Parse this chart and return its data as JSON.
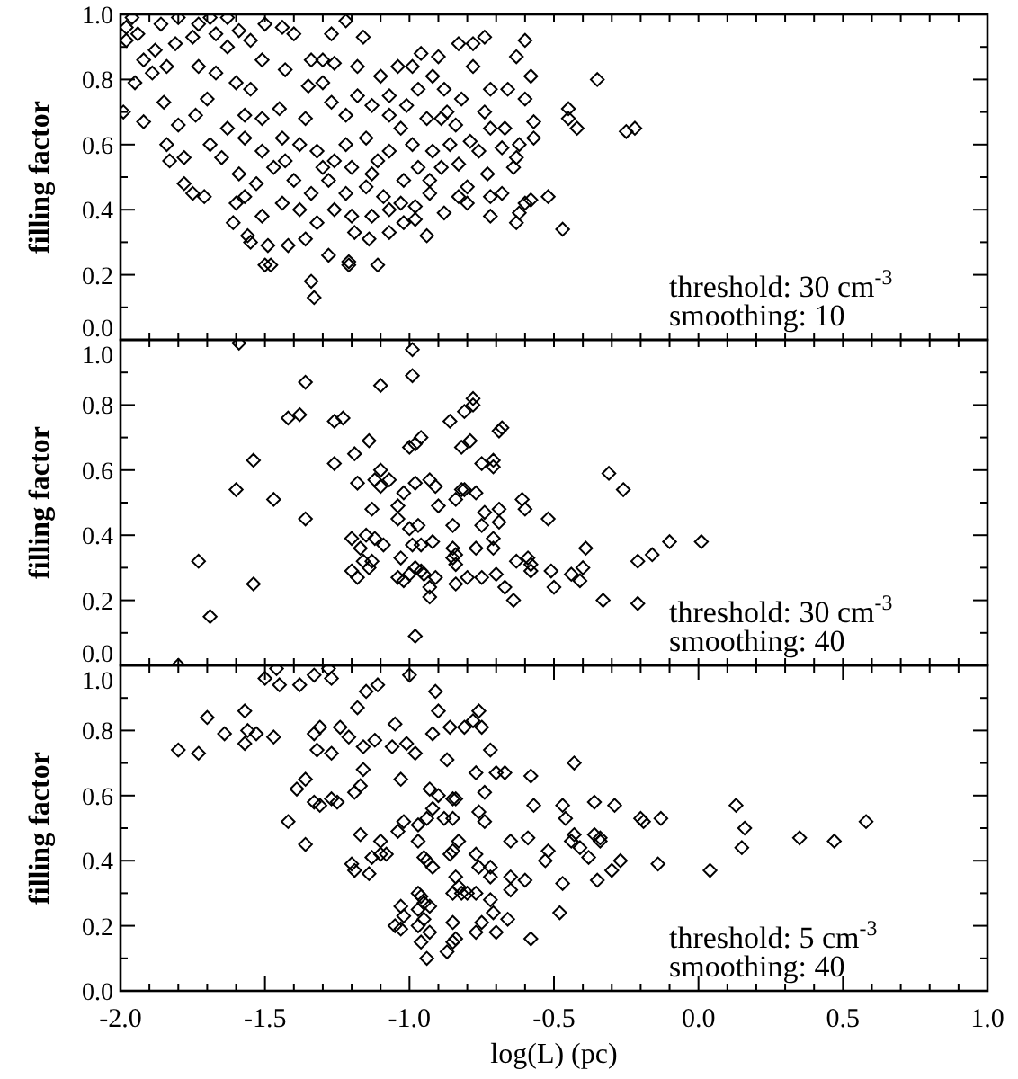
{
  "chart_data": [
    {
      "type": "scatter",
      "ylabel": "filling factor",
      "marker": "diamond",
      "grid": false,
      "tick_labels": "y",
      "annotations": [
        "threshold: 30 cm$^{-3}$",
        "smoothing: 10"
      ],
      "xlim": [
        -2,
        1
      ],
      "ylim": [
        0,
        1
      ],
      "xticks": [
        {
          "value": -2,
          "label": null
        },
        {
          "value": -1.9,
          "label": null
        },
        {
          "value": -1.8,
          "label": null
        },
        {
          "value": -1.7,
          "label": null
        },
        {
          "value": -1.6,
          "label": null
        },
        {
          "value": -1.5,
          "label": null
        },
        {
          "value": -1.4,
          "label": null
        },
        {
          "value": -1.3,
          "label": null
        },
        {
          "value": -1.2,
          "label": null
        },
        {
          "value": -1.1,
          "label": null
        },
        {
          "value": -1,
          "label": null
        },
        {
          "value": -0.9,
          "label": null
        },
        {
          "value": -0.8,
          "label": null
        },
        {
          "value": -0.7,
          "label": null
        },
        {
          "value": -0.6,
          "label": null
        },
        {
          "value": -0.5,
          "label": null
        },
        {
          "value": -0.4,
          "label": null
        },
        {
          "value": -0.3,
          "label": null
        },
        {
          "value": -0.2,
          "label": null
        },
        {
          "value": -0.1,
          "label": null
        },
        {
          "value": 0,
          "label": null
        },
        {
          "value": 0.1,
          "label": null
        },
        {
          "value": 0.2,
          "label": null
        },
        {
          "value": 0.3,
          "label": null
        },
        {
          "value": 0.4,
          "label": null
        },
        {
          "value": 0.5,
          "label": null
        },
        {
          "value": 0.6,
          "label": null
        },
        {
          "value": 0.7,
          "label": null
        },
        {
          "value": 0.8,
          "label": null
        },
        {
          "value": 0.9,
          "label": null
        },
        {
          "value": 1,
          "label": null
        }
      ],
      "yticks": [
        {
          "value": 0,
          "label": "0.0"
        },
        {
          "value": 0.1,
          "label": null
        },
        {
          "value": 0.2,
          "label": "0.2"
        },
        {
          "value": 0.3,
          "label": null
        },
        {
          "value": 0.4,
          "label": "0.4"
        },
        {
          "value": 0.5,
          "label": null
        },
        {
          "value": 0.6,
          "label": "0.6"
        },
        {
          "value": 0.7,
          "label": null
        },
        {
          "value": 0.8,
          "label": "0.8"
        },
        {
          "value": 0.9,
          "label": null
        },
        {
          "value": 1,
          "label": "1.0"
        }
      ],
      "series": [
        {
          "color": "#000000",
          "x": [
            -1.98,
            -1.98,
            -1.95,
            -1.99,
            -1.92,
            -1.88,
            -1.85,
            -1.84,
            -1.83,
            -1.78,
            -1.78,
            -1.71,
            -1.75,
            -1.81,
            -1.75,
            -1.69,
            -1.63,
            -1.89,
            -1.8,
            -1.74,
            -1.7,
            -1.67,
            -1.63,
            -1.61,
            -1.6,
            -1.55,
            -1.56,
            -1.49,
            -1.5,
            -1.48,
            -1.42,
            -1.36,
            -1.34,
            -1.33,
            -1.28,
            -1.21,
            -1.21,
            -1.11,
            -1.19,
            -1.14,
            -1.07,
            -1.02,
            -0.98,
            -0.94,
            -0.98,
            -0.93,
            -0.88,
            -0.83,
            -0.8,
            -0.8,
            -0.72,
            -0.72,
            -0.68,
            -0.63,
            -0.62,
            -0.6,
            -0.58,
            -0.52,
            -0.47,
            -0.64,
            -0.63,
            -0.68,
            -0.62,
            -0.57,
            -0.57,
            -0.6,
            -0.58,
            -0.63,
            -0.6,
            -0.74,
            -0.78,
            -0.83,
            -0.78,
            -0.72,
            -0.66,
            -0.74,
            -0.72,
            -0.67,
            -0.79,
            -0.76,
            -0.73,
            -0.83,
            -0.45,
            -0.45,
            -0.42,
            -0.35,
            -0.25,
            -0.22,
            -0.9,
            -0.96,
            -0.88,
            -0.92,
            -0.84,
            -0.89,
            -0.99,
            -1.04,
            -1.1,
            -1.16,
            -1.22,
            -1.27,
            -1.3,
            -1.4,
            -1.44,
            -1.5,
            -1.55,
            -1.51,
            -1.43,
            -1.35,
            -1.55,
            -1.6,
            -1.57,
            -1.51,
            -1.45,
            -1.36,
            -1.3,
            -1.27,
            -1.22,
            -1.18,
            -1.13,
            -1.07,
            -1.03,
            -0.99,
            -0.94,
            -0.92,
            -0.97,
            -1.02,
            -1.07,
            -1.11,
            -1.15,
            -1.22,
            -1.26,
            -1.32,
            -1.38,
            -1.44,
            -1.51,
            -1.57,
            -1.63,
            -1.65,
            -1.59,
            -1.53,
            -1.47,
            -1.4,
            -1.34,
            -1.28,
            -1.22,
            -1.15,
            -1.09,
            -1.03,
            -1.26,
            -1.32,
            -1.38,
            -1.44,
            -1.51,
            -1.57,
            -1.2,
            -1.13,
            -1.07,
            -1.2,
            -1.13,
            -1.3,
            -1.43,
            -1.69,
            -1.73,
            -1.84,
            -1.92,
            -1.96,
            -1.86,
            -1.8,
            -1.73,
            -1.67,
            -1.59,
            -1.94,
            -1.34,
            -1.26,
            -1.18,
            -1.07,
            -1.01,
            -0.97,
            -0.87,
            -0.82,
            -0.89,
            -0.93,
            -0.86
          ],
          "values": [
            0.96,
            0.92,
            0.79,
            0.7,
            0.67,
            0.89,
            0.73,
            0.6,
            0.55,
            0.56,
            0.48,
            0.44,
            0.45,
            0.91,
            0.93,
            0.99,
            0.99,
            0.82,
            0.66,
            0.69,
            0.74,
            0.82,
            0.9,
            0.36,
            0.42,
            0.3,
            0.32,
            0.29,
            0.23,
            0.23,
            0.29,
            0.31,
            0.18,
            0.13,
            0.26,
            0.23,
            0.24,
            0.23,
            0.33,
            0.31,
            0.33,
            0.36,
            0.41,
            0.32,
            0.37,
            0.45,
            0.39,
            0.44,
            0.42,
            0.47,
            0.38,
            0.44,
            0.45,
            0.36,
            0.39,
            0.42,
            0.43,
            0.44,
            0.34,
            0.53,
            0.56,
            0.59,
            0.6,
            0.62,
            0.67,
            0.74,
            0.81,
            0.87,
            0.92,
            0.93,
            0.91,
            0.91,
            0.84,
            0.77,
            0.77,
            0.7,
            0.65,
            0.65,
            0.61,
            0.58,
            0.51,
            0.54,
            0.71,
            0.68,
            0.65,
            0.8,
            0.64,
            0.65,
            0.87,
            0.88,
            0.77,
            0.81,
            0.66,
            0.68,
            0.84,
            0.84,
            0.81,
            0.93,
            0.98,
            0.94,
            0.86,
            0.94,
            0.96,
            0.97,
            0.92,
            0.86,
            0.83,
            0.78,
            0.77,
            0.79,
            0.69,
            0.68,
            0.71,
            0.68,
            0.79,
            0.73,
            0.69,
            0.75,
            0.72,
            0.69,
            0.65,
            0.6,
            0.68,
            0.58,
            0.53,
            0.49,
            0.58,
            0.55,
            0.62,
            0.6,
            0.55,
            0.58,
            0.6,
            0.62,
            0.58,
            0.62,
            0.65,
            0.56,
            0.51,
            0.48,
            0.53,
            0.49,
            0.45,
            0.49,
            0.45,
            0.47,
            0.44,
            0.42,
            0.4,
            0.36,
            0.4,
            0.42,
            0.38,
            0.44,
            0.38,
            0.38,
            0.4,
            0.53,
            0.51,
            0.53,
            0.55,
            0.6,
            0.84,
            0.84,
            0.86,
            0.99,
            0.97,
            0.99,
            0.97,
            0.94,
            0.95,
            0.94,
            0.86,
            0.85,
            0.84,
            0.75,
            0.72,
            0.77,
            0.7,
            0.74,
            0.53,
            0.49,
            0.6
          ]
        }
      ]
    },
    {
      "type": "scatter",
      "ylabel": "filling factor",
      "marker": "diamond",
      "grid": false,
      "tick_labels": "y",
      "annotations": [
        "threshold: 30 cm$^{-3}$",
        "smoothing: 40"
      ],
      "xlim": [
        -2,
        1
      ],
      "ylim": [
        0,
        1
      ],
      "xticks": [
        {
          "value": -2,
          "label": null
        },
        {
          "value": -1.9,
          "label": null
        },
        {
          "value": -1.8,
          "label": null
        },
        {
          "value": -1.7,
          "label": null
        },
        {
          "value": -1.6,
          "label": null
        },
        {
          "value": -1.5,
          "label": null
        },
        {
          "value": -1.4,
          "label": null
        },
        {
          "value": -1.3,
          "label": null
        },
        {
          "value": -1.2,
          "label": null
        },
        {
          "value": -1.1,
          "label": null
        },
        {
          "value": -1,
          "label": null
        },
        {
          "value": -0.9,
          "label": null
        },
        {
          "value": -0.8,
          "label": null
        },
        {
          "value": -0.7,
          "label": null
        },
        {
          "value": -0.6,
          "label": null
        },
        {
          "value": -0.5,
          "label": null
        },
        {
          "value": -0.4,
          "label": null
        },
        {
          "value": -0.3,
          "label": null
        },
        {
          "value": -0.2,
          "label": null
        },
        {
          "value": -0.1,
          "label": null
        },
        {
          "value": 0,
          "label": null
        },
        {
          "value": 0.1,
          "label": null
        },
        {
          "value": 0.2,
          "label": null
        },
        {
          "value": 0.3,
          "label": null
        },
        {
          "value": 0.4,
          "label": null
        },
        {
          "value": 0.5,
          "label": null
        },
        {
          "value": 0.6,
          "label": null
        },
        {
          "value": 0.7,
          "label": null
        },
        {
          "value": 0.8,
          "label": null
        },
        {
          "value": 0.9,
          "label": null
        },
        {
          "value": 1,
          "label": null
        }
      ],
      "yticks": [
        {
          "value": 0,
          "label": "0.0"
        },
        {
          "value": 0.1,
          "label": null
        },
        {
          "value": 0.2,
          "label": "0.2"
        },
        {
          "value": 0.3,
          "label": null
        },
        {
          "value": 0.4,
          "label": "0.4"
        },
        {
          "value": 0.5,
          "label": null
        },
        {
          "value": 0.6,
          "label": "0.6"
        },
        {
          "value": 0.7,
          "label": null
        },
        {
          "value": 0.8,
          "label": "0.8"
        },
        {
          "value": 0.9,
          "label": null
        },
        {
          "value": 1,
          "label": "1.0"
        }
      ],
      "series": [
        {
          "color": "#000000",
          "x": [
            -1.8,
            -1.59,
            -1.73,
            -1.69,
            -1.6,
            -1.54,
            -1.54,
            -1.47,
            -1.42,
            -1.38,
            -1.36,
            -1.36,
            -1.26,
            -1.23,
            -1.26,
            -1.19,
            -1.18,
            -1.14,
            -1.1,
            -1.13,
            -1.12,
            -1.1,
            -1.1,
            -1.07,
            -1.2,
            -1.17,
            -1.15,
            -1.12,
            -1.09,
            -1.16,
            -1.13,
            -1.14,
            -1.2,
            -1.18,
            -1.04,
            -1.04,
            -1.02,
            -1.0,
            -0.99,
            -0.99,
            -1.0,
            -0.98,
            -0.96,
            -0.98,
            -0.97,
            -0.99,
            -0.96,
            -1.03,
            -1.04,
            -1.02,
            -1.0,
            -0.98,
            -0.96,
            -0.95,
            -0.93,
            -0.91,
            -0.92,
            -0.91,
            -0.93,
            -0.93,
            -0.98,
            -0.9,
            -0.86,
            -0.82,
            -0.81,
            -0.78,
            -0.78,
            -0.79,
            -0.84,
            -0.82,
            -0.81,
            -0.77,
            -0.85,
            -0.85,
            -0.85,
            -0.84,
            -0.84,
            -0.84,
            -0.8,
            -0.77,
            -0.75,
            -0.74,
            -0.75,
            -0.71,
            -0.71,
            -0.68,
            -0.69,
            -0.69,
            -0.69,
            -0.71,
            -0.71,
            -0.75,
            -0.7,
            -0.67,
            -0.64,
            -0.63,
            -0.61,
            -0.6,
            -0.59,
            -0.58,
            -0.58,
            -0.52,
            -0.51,
            -0.5,
            -0.44,
            -0.41,
            -0.4,
            -0.39,
            -0.33,
            -0.31,
            -0.26,
            -0.21,
            -0.21,
            -0.16,
            -0.1,
            0.01
          ],
          "values": [
            0.0,
            0.99,
            0.32,
            0.15,
            0.54,
            0.63,
            0.25,
            0.51,
            0.76,
            0.77,
            0.87,
            0.45,
            0.75,
            0.76,
            0.62,
            0.65,
            0.56,
            0.69,
            0.86,
            0.48,
            0.57,
            0.6,
            0.55,
            0.57,
            0.39,
            0.36,
            0.4,
            0.39,
            0.37,
            0.32,
            0.32,
            0.3,
            0.29,
            0.27,
            0.49,
            0.45,
            0.53,
            0.42,
            0.97,
            0.89,
            0.67,
            0.68,
            0.7,
            0.56,
            0.43,
            0.37,
            0.37,
            0.33,
            0.27,
            0.26,
            0.28,
            0.3,
            0.29,
            0.28,
            0.57,
            0.55,
            0.38,
            0.27,
            0.24,
            0.21,
            0.09,
            0.49,
            0.75,
            0.67,
            0.78,
            0.82,
            0.8,
            0.69,
            0.51,
            0.54,
            0.54,
            0.53,
            0.43,
            0.36,
            0.33,
            0.34,
            0.31,
            0.25,
            0.27,
            0.36,
            0.62,
            0.47,
            0.43,
            0.61,
            0.63,
            0.73,
            0.72,
            0.48,
            0.44,
            0.39,
            0.36,
            0.27,
            0.28,
            0.24,
            0.2,
            0.32,
            0.51,
            0.48,
            0.33,
            0.31,
            0.29,
            0.45,
            0.29,
            0.24,
            0.28,
            0.26,
            0.3,
            0.36,
            0.2,
            0.59,
            0.54,
            0.32,
            0.19,
            0.34,
            0.38,
            0.38
          ]
        }
      ]
    },
    {
      "type": "scatter",
      "ylabel": "filling factor",
      "xlabel": "log(L) (pc)",
      "marker": "diamond",
      "grid": false,
      "annotations": [
        "threshold: 5 cm$^{-3}$",
        "smoothing: 40"
      ],
      "xlim": [
        -2,
        1
      ],
      "ylim": [
        0,
        1
      ],
      "xticks": [
        {
          "value": -2,
          "label": "-2.0"
        },
        {
          "value": -1.9,
          "label": null
        },
        {
          "value": -1.8,
          "label": null
        },
        {
          "value": -1.7,
          "label": null
        },
        {
          "value": -1.6,
          "label": null
        },
        {
          "value": -1.5,
          "label": "-1.5"
        },
        {
          "value": -1.4,
          "label": null
        },
        {
          "value": -1.3,
          "label": null
        },
        {
          "value": -1.2,
          "label": null
        },
        {
          "value": -1.1,
          "label": null
        },
        {
          "value": -1,
          "label": "-1.0"
        },
        {
          "value": -0.9,
          "label": null
        },
        {
          "value": -0.8,
          "label": null
        },
        {
          "value": -0.7,
          "label": null
        },
        {
          "value": -0.6,
          "label": null
        },
        {
          "value": -0.5,
          "label": "-0.5"
        },
        {
          "value": -0.4,
          "label": null
        },
        {
          "value": -0.3,
          "label": null
        },
        {
          "value": -0.2,
          "label": null
        },
        {
          "value": -0.1,
          "label": null
        },
        {
          "value": 0,
          "label": "0.0"
        },
        {
          "value": 0.1,
          "label": null
        },
        {
          "value": 0.2,
          "label": null
        },
        {
          "value": 0.3,
          "label": null
        },
        {
          "value": 0.4,
          "label": null
        },
        {
          "value": 0.5,
          "label": "0.5"
        },
        {
          "value": 0.6,
          "label": null
        },
        {
          "value": 0.7,
          "label": null
        },
        {
          "value": 0.8,
          "label": null
        },
        {
          "value": 0.9,
          "label": null
        },
        {
          "value": 1,
          "label": "1.0"
        }
      ],
      "yticks": [
        {
          "value": 0,
          "label": "0.0"
        },
        {
          "value": 0.1,
          "label": null
        },
        {
          "value": 0.2,
          "label": "0.2"
        },
        {
          "value": 0.3,
          "label": null
        },
        {
          "value": 0.4,
          "label": "0.4"
        },
        {
          "value": 0.5,
          "label": null
        },
        {
          "value": 0.6,
          "label": "0.6"
        },
        {
          "value": 0.7,
          "label": null
        },
        {
          "value": 0.8,
          "label": "0.8"
        },
        {
          "value": 0.9,
          "label": null
        },
        {
          "value": 1,
          "label": "1.0"
        }
      ],
      "series": [
        {
          "color": "#000000",
          "x": [
            -1.8,
            -1.73,
            -1.7,
            -1.64,
            -1.57,
            -1.56,
            -1.57,
            -1.53,
            -1.5,
            -1.47,
            -1.46,
            -1.45,
            -1.38,
            -1.33,
            -1.28,
            -1.27,
            -1.33,
            -1.31,
            -1.32,
            -1.27,
            -1.24,
            -1.21,
            -1.18,
            -1.15,
            -1.11,
            -1.16,
            -1.12,
            -1.16,
            -1.0,
            -0.91,
            -0.9,
            -1.05,
            -1.06,
            -1.01,
            -0.98,
            -0.92,
            -0.86,
            -0.87,
            -0.81,
            -0.78,
            -0.76,
            -0.75,
            -0.72,
            -0.77,
            -0.74,
            -0.7,
            -0.67,
            -0.58,
            -0.43,
            -1.36,
            -1.39,
            -1.33,
            -1.31,
            -1.27,
            -1.25,
            -1.19,
            -1.17,
            -1.42,
            -1.36,
            -1.17,
            -1.2,
            -1.19,
            -1.14,
            -1.13,
            -1.1,
            -1.1,
            -1.08,
            -1.03,
            -1.04,
            -1.02,
            -0.97,
            -0.94,
            -0.93,
            -0.92,
            -0.9,
            -0.88,
            -0.85,
            -0.84,
            -0.85,
            -0.83,
            -0.97,
            -0.95,
            -0.94,
            -0.92,
            -0.86,
            -0.85,
            -0.77,
            -0.76,
            -0.74,
            -0.76,
            -0.72,
            -0.84,
            -0.83,
            -0.85,
            -0.82,
            -0.8,
            -0.77,
            -0.72,
            -0.65,
            -0.65,
            -0.65,
            -0.6,
            -0.59,
            -0.57,
            -0.53,
            -0.52,
            -0.47,
            -0.46,
            -0.44,
            -0.43,
            -0.41,
            -0.38,
            -0.36,
            -0.34,
            -0.34,
            -0.36,
            -0.29,
            -0.27,
            -0.3,
            -0.35,
            -0.47,
            -0.48,
            -0.58,
            -0.2,
            -0.19,
            -0.13,
            -0.14,
            0.04,
            0.13,
            0.16,
            0.15,
            0.35,
            0.47,
            0.58,
            -1.03,
            -1.05,
            -1.03,
            -1.02,
            -0.97,
            -0.96,
            -0.97,
            -0.95,
            -0.93,
            -0.97,
            -0.95,
            -0.93,
            -0.96,
            -0.94,
            -0.87,
            -0.85,
            -0.84,
            -0.85,
            -0.77,
            -0.75,
            -0.71,
            -0.7,
            -0.66,
            -0.72
          ],
          "values": [
            0.74,
            0.73,
            0.84,
            0.79,
            0.86,
            0.8,
            0.76,
            0.79,
            0.96,
            0.78,
            0.99,
            0.94,
            0.94,
            0.97,
            0.99,
            0.96,
            0.79,
            0.81,
            0.74,
            0.73,
            0.81,
            0.78,
            0.87,
            0.92,
            0.94,
            0.75,
            0.77,
            0.68,
            0.97,
            0.92,
            0.86,
            0.82,
            0.75,
            0.76,
            0.73,
            0.79,
            0.81,
            0.71,
            0.81,
            0.83,
            0.86,
            0.81,
            0.74,
            0.67,
            0.61,
            0.67,
            0.67,
            0.66,
            0.7,
            0.65,
            0.62,
            0.58,
            0.57,
            0.59,
            0.58,
            0.61,
            0.63,
            0.52,
            0.45,
            0.48,
            0.39,
            0.37,
            0.36,
            0.41,
            0.42,
            0.46,
            0.42,
            0.65,
            0.49,
            0.52,
            0.51,
            0.53,
            0.62,
            0.56,
            0.6,
            0.53,
            0.59,
            0.59,
            0.53,
            0.46,
            0.46,
            0.41,
            0.4,
            0.38,
            0.42,
            0.43,
            0.42,
            0.55,
            0.52,
            0.38,
            0.38,
            0.35,
            0.32,
            0.3,
            0.3,
            0.3,
            0.3,
            0.35,
            0.46,
            0.35,
            0.31,
            0.34,
            0.47,
            0.57,
            0.4,
            0.43,
            0.57,
            0.53,
            0.46,
            0.48,
            0.44,
            0.41,
            0.48,
            0.47,
            0.46,
            0.58,
            0.57,
            0.4,
            0.37,
            0.34,
            0.33,
            0.24,
            0.16,
            0.53,
            0.52,
            0.53,
            0.39,
            0.37,
            0.57,
            0.5,
            0.44,
            0.47,
            0.46,
            0.52,
            0.26,
            0.2,
            0.19,
            0.23,
            0.3,
            0.29,
            0.25,
            0.27,
            0.26,
            0.2,
            0.22,
            0.18,
            0.15,
            0.1,
            0.12,
            0.15,
            0.16,
            0.21,
            0.18,
            0.21,
            0.24,
            0.18,
            0.22,
            0.28
          ]
        }
      ]
    }
  ]
}
